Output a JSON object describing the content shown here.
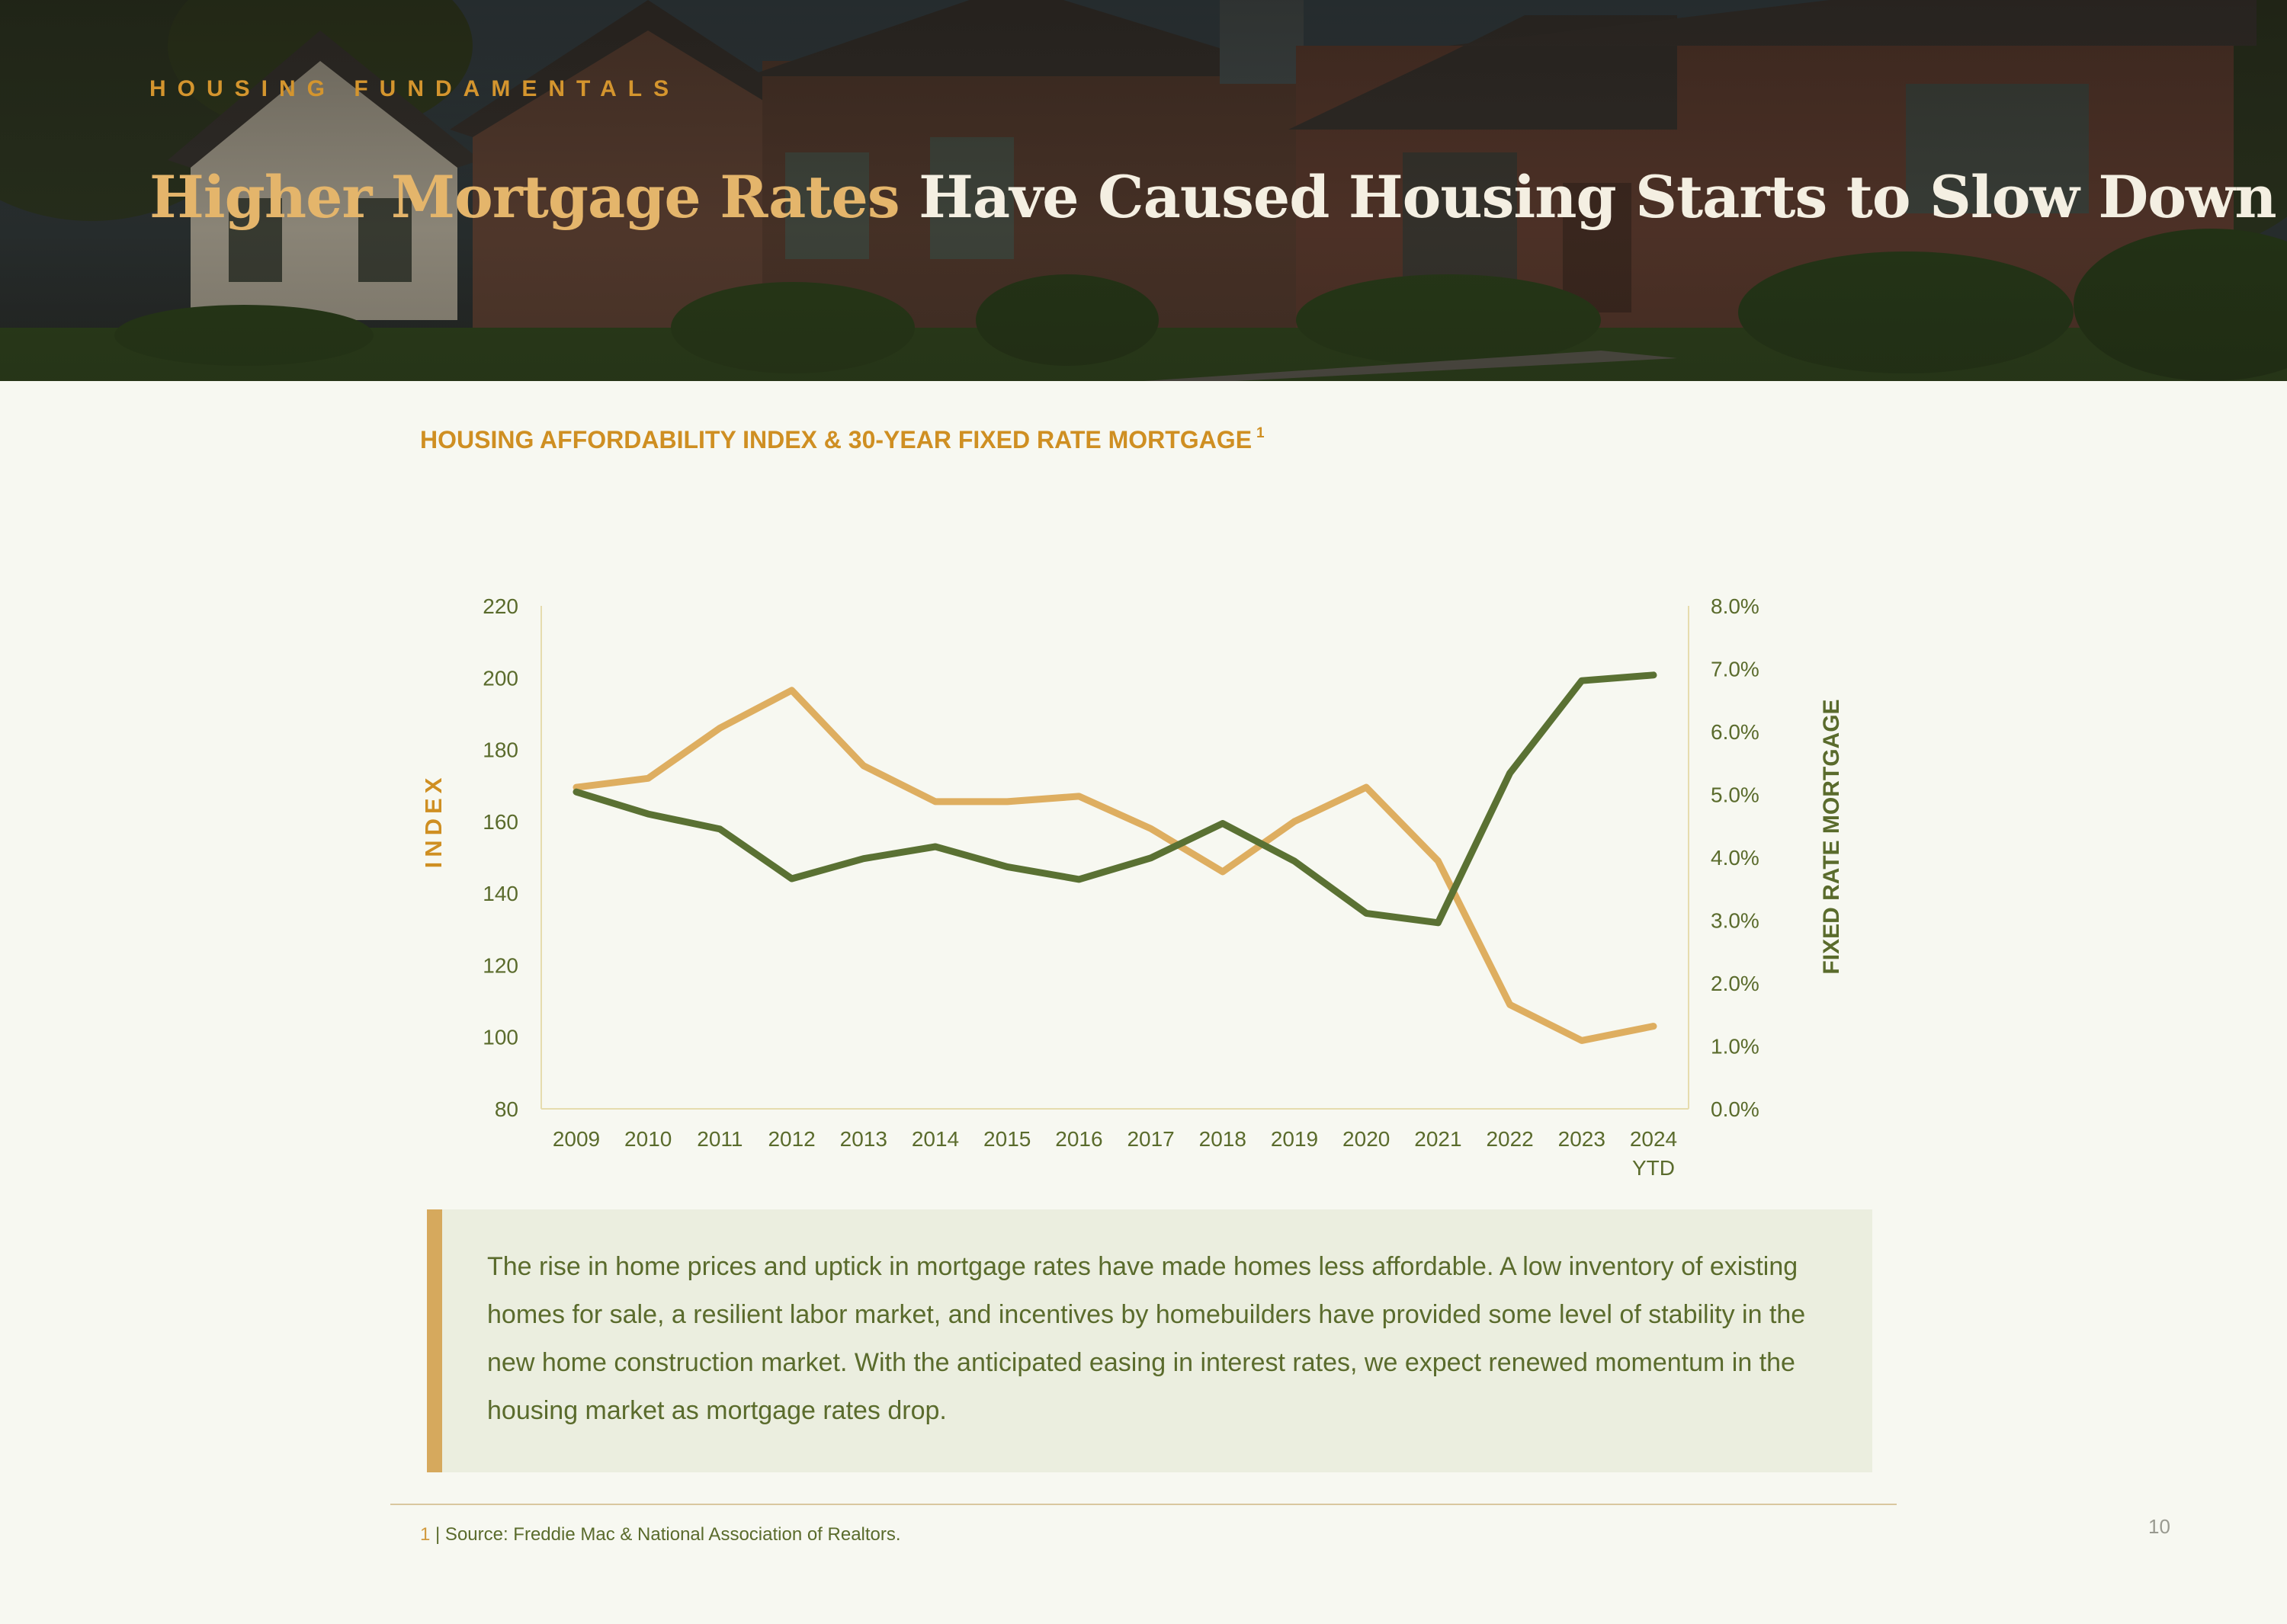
{
  "hero": {
    "eyebrow": "HOUSING FUNDAMENTALS",
    "title_accent": "Higher Mortgage Rates",
    "title_rest": "Have Caused Housing Starts to Slow Down"
  },
  "chart_title": "HOUSING AFFORDABILITY INDEX & 30-YEAR FIXED RATE MORTGAGE",
  "chart_title_ref": "1",
  "chart_data": {
    "type": "line",
    "categories": [
      "2009",
      "2010",
      "2011",
      "2012",
      "2013",
      "2014",
      "2015",
      "2016",
      "2017",
      "2018",
      "2019",
      "2020",
      "2021",
      "2022",
      "2023",
      "2024\nYTD"
    ],
    "ylabel": "INDEX",
    "y2label": "FIXED RATE MORTGAGE",
    "ylim": [
      80,
      220
    ],
    "yticks": [
      "220",
      "200",
      "180",
      "160",
      "140",
      "120",
      "100",
      "80"
    ],
    "y2lim": [
      0,
      8
    ],
    "y2ticks": [
      "8.0%",
      "7.0%",
      "6.0%",
      "5.0%",
      "4.0%",
      "3.0%",
      "2.0%",
      "1.0%",
      "0.0%"
    ],
    "series": [
      {
        "axis": "left",
        "color": "#deae60",
        "values": [
          169.5,
          172,
          186,
          196.5,
          175.5,
          165.5,
          165.5,
          167,
          158,
          146,
          160,
          169.5,
          149,
          109,
          99,
          103
        ]
      },
      {
        "axis": "right",
        "color": "#5a7133",
        "values": [
          5.04,
          4.69,
          4.45,
          3.66,
          3.98,
          4.17,
          3.85,
          3.65,
          3.99,
          4.54,
          3.94,
          3.11,
          2.96,
          5.34,
          6.81,
          6.9
        ]
      }
    ]
  },
  "note": "The rise in home prices and uptick in mortgage rates have made homes less affordable. A low inventory of existing homes for sale, a resilient labor market, and incentives by homebuilders have provided some level of stability in the new home construction market. With the anticipated easing in interest rates, we expect renewed momentum in the housing market as mortgage rates drop.",
  "footnote": {
    "num": "1",
    "text": " | Source: Freddie Mac & National Association of Realtors."
  },
  "page_number": "10"
}
